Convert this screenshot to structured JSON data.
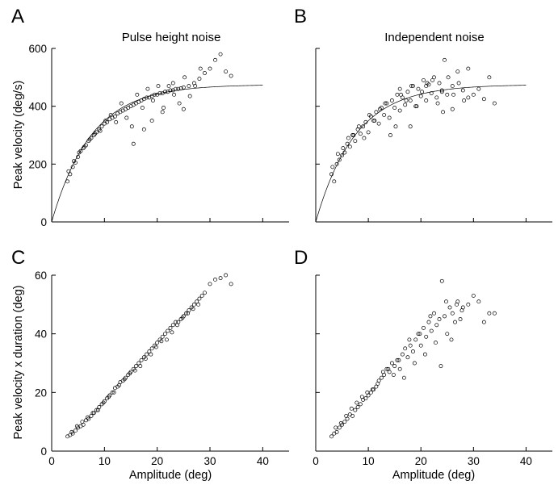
{
  "chart_data": [
    {
      "panel": "A",
      "type": "scatter",
      "title": "Pulse height noise",
      "xlabel": "",
      "ylabel": "Peak velocity (deg/s)",
      "xlim": [
        0,
        45
      ],
      "ylim": [
        0,
        600
      ],
      "xticks": [
        0,
        10,
        20,
        30,
        40
      ],
      "yticks": [
        0,
        200,
        400,
        600
      ],
      "fit_curve": {
        "form": "ymax*(1-exp(-x/c))",
        "ymax": 475,
        "c": 7.5,
        "x_range": [
          0,
          40
        ]
      },
      "x": [
        3,
        3.5,
        4,
        4.5,
        5,
        5.5,
        6,
        6.5,
        7,
        7.5,
        8,
        8.5,
        9,
        9.5,
        10,
        10.5,
        11,
        11.5,
        12,
        12.5,
        13,
        13.5,
        14,
        14.5,
        15,
        15.5,
        16,
        16.5,
        17,
        17.5,
        18,
        18.5,
        19,
        19.5,
        20,
        20.5,
        21,
        21.5,
        22,
        22.5,
        23,
        23.5,
        24,
        24.5,
        25,
        26,
        27,
        28,
        29,
        30,
        31,
        32,
        33,
        34,
        3.2,
        4.2,
        5.2,
        6.2,
        7.2,
        8.2,
        9.2,
        10.2,
        11.2,
        12.2,
        13.2,
        14.2,
        15.2,
        16.2,
        17.2,
        18.2,
        19.2,
        20.2,
        21.2,
        22.2,
        23.2,
        24.2,
        25.2,
        26.2,
        27.2,
        28.2,
        15.5,
        17.5,
        19,
        21,
        23,
        25
      ],
      "y": [
        140,
        165,
        190,
        205,
        225,
        245,
        255,
        265,
        280,
        290,
        300,
        310,
        320,
        330,
        340,
        345,
        355,
        360,
        365,
        375,
        380,
        385,
        390,
        395,
        400,
        405,
        410,
        415,
        420,
        425,
        430,
        430,
        435,
        440,
        440,
        445,
        445,
        450,
        450,
        455,
        455,
        460,
        460,
        462,
        465,
        470,
        480,
        495,
        515,
        530,
        560,
        580,
        520,
        505,
        175,
        210,
        240,
        260,
        285,
        305,
        315,
        350,
        370,
        345,
        410,
        360,
        330,
        440,
        395,
        460,
        420,
        470,
        395,
        470,
        440,
        410,
        500,
        435,
        470,
        530,
        270,
        320,
        350,
        380,
        480,
        390
      ]
    },
    {
      "panel": "B",
      "type": "scatter",
      "title": "Independent noise",
      "xlabel": "",
      "ylabel": "",
      "xlim": [
        0,
        45
      ],
      "ylim": [
        0,
        600
      ],
      "xticks": [
        0,
        10,
        20,
        30,
        40
      ],
      "yticks": [
        0,
        200,
        400,
        600
      ],
      "fit_curve": {
        "form": "ymax*(1-exp(-x/c))",
        "ymax": 475,
        "c": 7.5,
        "x_range": [
          0,
          40
        ]
      },
      "x": [
        3,
        3.5,
        4,
        4.5,
        5,
        5.5,
        6,
        6.5,
        7,
        7.5,
        8,
        8.5,
        9,
        9.5,
        10,
        10.5,
        11,
        11.5,
        12,
        12.5,
        13,
        13.5,
        14,
        14.5,
        15,
        15.5,
        16,
        16.5,
        17,
        17.5,
        18,
        18.5,
        19,
        19.5,
        20,
        20.5,
        21,
        21.5,
        22,
        22.5,
        23,
        23.5,
        24,
        24.5,
        25,
        26,
        27,
        28,
        29,
        30,
        31,
        32,
        33,
        34,
        3.2,
        4.2,
        5.2,
        6.2,
        7.2,
        8.2,
        9.2,
        10.2,
        11.2,
        12.2,
        13.2,
        14.2,
        15.2,
        16.2,
        17.2,
        18.2,
        19.2,
        20.2,
        21.2,
        22.2,
        23.2,
        24.2,
        25.2,
        26.2,
        27.2,
        28.2,
        16,
        18,
        21,
        24,
        26,
        29
      ],
      "y": [
        165,
        140,
        200,
        215,
        230,
        240,
        270,
        260,
        300,
        280,
        320,
        305,
        330,
        345,
        310,
        365,
        350,
        380,
        340,
        395,
        370,
        410,
        360,
        420,
        395,
        440,
        385,
        430,
        405,
        450,
        420,
        470,
        400,
        460,
        435,
        490,
        420,
        475,
        445,
        500,
        430,
        480,
        455,
        560,
        440,
        470,
        520,
        455,
        530,
        440,
        460,
        425,
        500,
        410,
        190,
        235,
        255,
        290,
        300,
        330,
        290,
        370,
        350,
        390,
        410,
        300,
        330,
        440,
        420,
        470,
        400,
        450,
        480,
        490,
        410,
        380,
        500,
        440,
        480,
        420,
        460,
        330,
        470,
        450,
        390,
        430
      ]
    },
    {
      "panel": "C",
      "type": "scatter",
      "title": "",
      "xlabel": "Amplitude (deg)",
      "ylabel": "Peak velocity x duration (deg)",
      "xlim": [
        0,
        45
      ],
      "ylim": [
        0,
        60
      ],
      "xticks": [
        0,
        10,
        20,
        30,
        40
      ],
      "yticks": [
        0,
        20,
        40,
        60
      ],
      "x": [
        3,
        3.5,
        4,
        4.5,
        5,
        5.5,
        6,
        6.5,
        7,
        7.5,
        8,
        8.5,
        9,
        9.5,
        10,
        10.5,
        11,
        11.5,
        12,
        12.5,
        13,
        13.5,
        14,
        14.5,
        15,
        15.5,
        16,
        16.5,
        17,
        17.5,
        18,
        18.5,
        19,
        19.5,
        20,
        20.5,
        21,
        21.5,
        22,
        22.5,
        23,
        23.5,
        24,
        24.5,
        25,
        25.5,
        26,
        26.5,
        27,
        27.5,
        28,
        28.5,
        29,
        30,
        31,
        32,
        33,
        34,
        3.8,
        4.8,
        5.8,
        6.8,
        7.8,
        8.8,
        9.8,
        10.8,
        11.8,
        12.8,
        13.8,
        14.8,
        15.8,
        16.8,
        17.8,
        18.8,
        19.8,
        20.8,
        21.8,
        22.8,
        23.8,
        24.8,
        25.8,
        26.8,
        27.8
      ],
      "y": [
        5,
        5.5,
        6,
        7,
        8,
        8.5,
        9,
        10.5,
        11,
        12,
        13,
        14,
        15,
        16,
        17,
        18,
        19,
        20,
        21.5,
        22,
        23.5,
        24,
        25,
        26,
        27,
        28,
        29,
        30,
        31,
        32,
        33,
        34,
        35,
        36,
        37,
        38,
        39,
        40,
        41,
        42,
        43,
        44,
        44,
        45,
        46,
        47,
        48,
        49,
        50,
        51,
        52,
        53,
        54,
        57,
        58.5,
        59,
        60,
        57,
        6.5,
        8.5,
        10,
        11.5,
        13,
        14,
        16.5,
        18.5,
        20,
        22.5,
        24.5,
        26.5,
        27.5,
        29,
        31.5,
        33,
        35.5,
        37.5,
        38,
        40.5,
        43,
        45.5,
        47,
        48.5,
        50
      ]
    },
    {
      "panel": "D",
      "type": "scatter",
      "title": "",
      "xlabel": "Amplitude (deg)",
      "ylabel": "",
      "xlim": [
        0,
        45
      ],
      "ylim": [
        0,
        60
      ],
      "xticks": [
        0,
        10,
        20,
        30,
        40
      ],
      "yticks": [
        0,
        20,
        40,
        60
      ],
      "x": [
        3,
        3.5,
        4,
        4.5,
        5,
        5.5,
        6,
        6.5,
        7,
        7.5,
        8,
        8.5,
        9,
        9.5,
        10,
        10.5,
        11,
        11.5,
        12,
        12.5,
        13,
        13.5,
        14,
        14.5,
        15,
        15.5,
        16,
        16.5,
        17,
        17.5,
        18,
        18.5,
        19,
        19.5,
        20,
        20.5,
        21,
        21.5,
        22,
        22.5,
        23,
        23.5,
        24,
        24.5,
        25,
        25.5,
        26,
        26.5,
        27,
        27.5,
        28,
        29,
        30,
        31,
        32,
        33,
        34,
        3.8,
        4.8,
        5.8,
        6.8,
        7.8,
        8.8,
        9.8,
        10.8,
        11.8,
        12.8,
        13.8,
        14.8,
        15.8,
        16.8,
        17.8,
        18.8,
        19.8,
        20.8,
        21.8,
        22.8,
        23.8,
        24.8,
        25.8,
        26.8,
        27.8
      ],
      "y": [
        5,
        6,
        6.5,
        8,
        9,
        10,
        11,
        12.5,
        12,
        14,
        15,
        16,
        17.5,
        18,
        19,
        20,
        21,
        22,
        24,
        25,
        26,
        28,
        27,
        30,
        29,
        31,
        28,
        33,
        35,
        32,
        36,
        34,
        38,
        40,
        36,
        42,
        39,
        44,
        41,
        47,
        43,
        45,
        58,
        46,
        40,
        49,
        47,
        44,
        51,
        45,
        49,
        50,
        53,
        51,
        44,
        47,
        47,
        8,
        9.5,
        12,
        14.5,
        16.5,
        18.5,
        20,
        21,
        23,
        27,
        28,
        26,
        31,
        25,
        38,
        30,
        40,
        33,
        46,
        37,
        29,
        51,
        38,
        50,
        48
      ]
    }
  ],
  "panel_letters": {
    "a": "A",
    "b": "B",
    "c": "C",
    "d": "D"
  },
  "titles": {
    "a": "Pulse height noise",
    "b": "Independent noise"
  },
  "axis_labels": {
    "y_top": "Peak velocity (deg/s)",
    "y_bottom": "Peak velocity x duration (deg)",
    "x_left": "Amplitude (deg)",
    "x_right": "Amplitude (deg)"
  }
}
